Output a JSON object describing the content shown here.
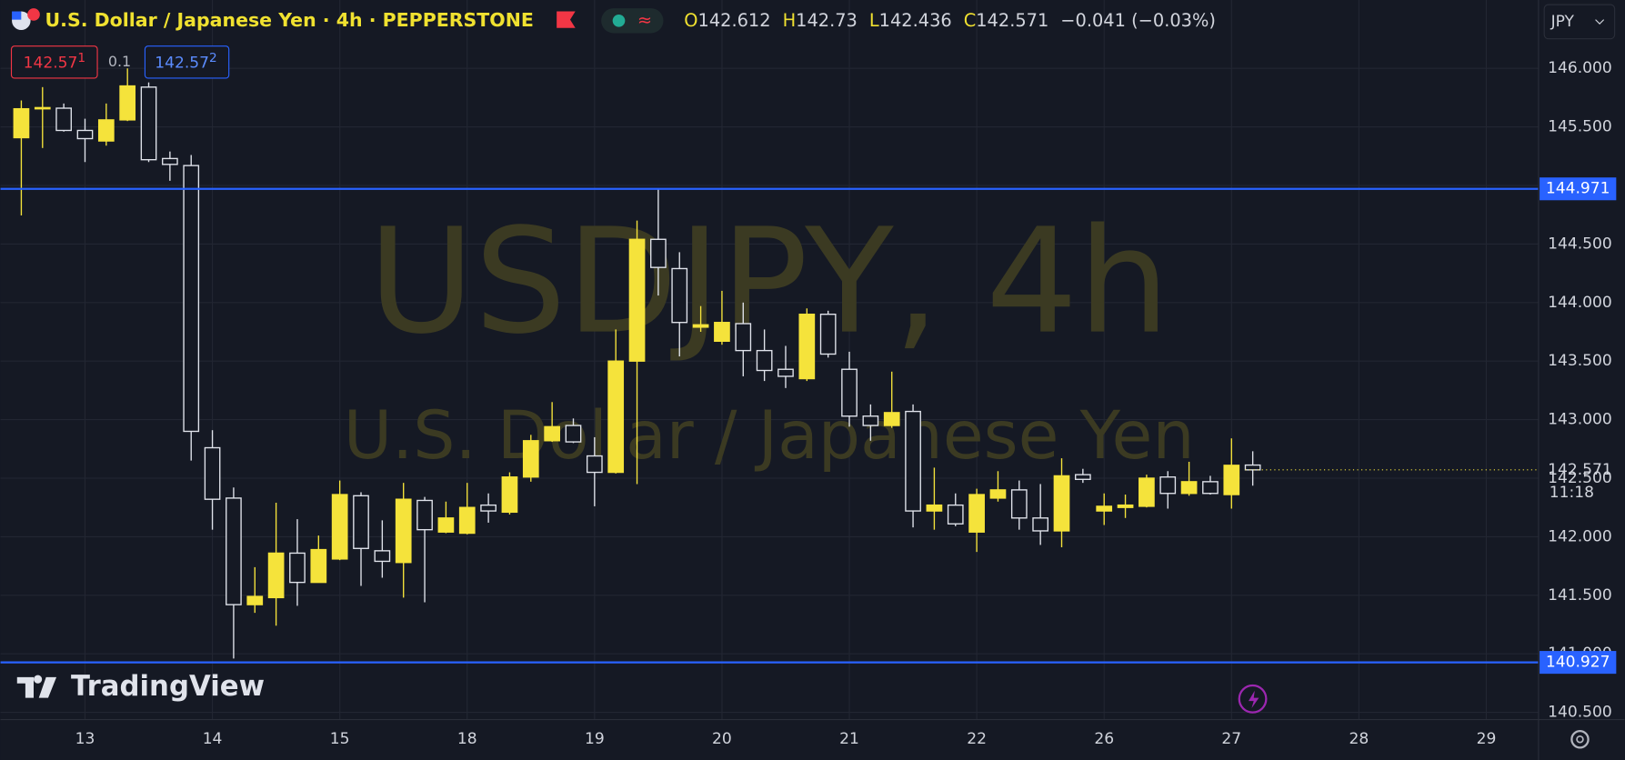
{
  "chart_data": {
    "type": "candlestick",
    "symbol_title": "U.S. Dollar / Japanese Yen · 4h · PEPPERSTONE",
    "legend_labels": {
      "open": "O",
      "high": "H",
      "low": "L",
      "close": "C"
    },
    "ohlc": {
      "open": 142.612,
      "high": 142.73,
      "low": 142.436,
      "close": 142.571,
      "change": "−0.041 (−0.03%)"
    },
    "trade": {
      "sell": "142.57",
      "sell_pip": "1",
      "spread": "0.1",
      "buy": "142.57",
      "buy_pip": "2"
    },
    "currency": "JPY",
    "brand": "TradingView",
    "watermark": {
      "symbol": "USDJPY, 4h",
      "description": "U.S. Dollar / Japanese Yen"
    },
    "countdown": "11:18",
    "up_color": "#f5e33b",
    "down_color": "#e0e3eb",
    "open": [
      145.408,
      145.66,
      145.66,
      145.47,
      145.38,
      145.56,
      145.84,
      145.23,
      145.17,
      142.76,
      142.33,
      141.42,
      141.48,
      141.86,
      141.61,
      141.81,
      142.35,
      141.88,
      141.78,
      142.31,
      142.04,
      142.03,
      142.27,
      142.21,
      142.51,
      142.82,
      142.95,
      142.69,
      142.55,
      143.5,
      144.54,
      144.29,
      143.79,
      143.67,
      143.82,
      143.59,
      143.43,
      143.35,
      143.9,
      143.43,
      143.03,
      142.95,
      143.07,
      142.22,
      142.27,
      142.04,
      142.33,
      142.4,
      142.16,
      142.05,
      142.53,
      142.22,
      142.25,
      142.26,
      142.51,
      142.37,
      142.47,
      142.36,
      142.612
    ],
    "high": [
      145.726,
      145.84,
      145.7,
      145.57,
      145.7,
      146.0,
      145.88,
      145.29,
      145.26,
      142.91,
      142.42,
      141.74,
      142.29,
      142.15,
      142.01,
      142.48,
      142.38,
      142.14,
      142.46,
      142.34,
      142.3,
      142.46,
      142.37,
      142.55,
      142.87,
      143.15,
      143.01,
      142.85,
      143.77,
      144.7,
      144.97,
      144.43,
      143.97,
      144.1,
      144.0,
      143.77,
      143.63,
      143.95,
      143.93,
      143.58,
      143.13,
      143.41,
      143.13,
      142.59,
      142.37,
      142.41,
      142.56,
      142.48,
      142.45,
      142.67,
      142.58,
      142.37,
      142.36,
      142.53,
      142.56,
      142.64,
      142.52,
      142.84,
      142.73
    ],
    "low": [
      144.744,
      145.32,
      145.46,
      145.2,
      145.34,
      145.55,
      145.2,
      145.04,
      142.65,
      142.06,
      140.96,
      141.35,
      141.24,
      141.41,
      141.61,
      141.8,
      141.58,
      141.65,
      141.48,
      141.44,
      142.03,
      142.02,
      142.12,
      142.19,
      142.47,
      142.81,
      142.8,
      142.26,
      142.54,
      142.45,
      144.06,
      143.54,
      143.75,
      143.64,
      143.37,
      143.33,
      143.27,
      143.33,
      143.53,
      142.94,
      142.82,
      142.93,
      142.08,
      142.06,
      142.09,
      141.87,
      142.3,
      142.06,
      141.93,
      141.91,
      142.46,
      142.1,
      142.16,
      142.25,
      142.24,
      142.35,
      142.36,
      142.24,
      142.436
    ],
    "close": [
      145.655,
      145.665,
      145.47,
      145.4,
      145.56,
      145.85,
      145.22,
      145.18,
      142.9,
      142.32,
      141.42,
      141.49,
      141.86,
      141.61,
      141.89,
      142.36,
      141.9,
      141.79,
      142.32,
      142.06,
      142.16,
      142.25,
      142.22,
      142.51,
      142.82,
      142.94,
      142.81,
      142.55,
      143.5,
      144.54,
      144.3,
      143.83,
      143.81,
      143.83,
      143.59,
      143.42,
      143.37,
      143.9,
      143.56,
      143.03,
      142.95,
      143.06,
      142.22,
      142.27,
      142.11,
      142.36,
      142.4,
      142.16,
      142.05,
      142.52,
      142.49,
      142.26,
      142.27,
      142.5,
      142.37,
      142.47,
      142.37,
      142.61,
      142.571
    ],
    "xlim": [
      -0.98,
      71.46
    ],
    "xticks": [
      {
        "value": 3,
        "label": "13"
      },
      {
        "value": 9,
        "label": "14"
      },
      {
        "value": 15,
        "label": "15"
      },
      {
        "value": 21,
        "label": "18"
      },
      {
        "value": 27,
        "label": "19"
      },
      {
        "value": 33,
        "label": "20"
      },
      {
        "value": 39,
        "label": "21"
      },
      {
        "value": 45,
        "label": "22"
      },
      {
        "value": 51,
        "label": "26"
      },
      {
        "value": 57,
        "label": "27"
      },
      {
        "value": 63,
        "label": "28"
      },
      {
        "value": 69,
        "label": "29"
      }
    ],
    "ylim": [
      140.438,
      146.584
    ],
    "yticks": [
      {
        "value": 140.5,
        "label": "140.500"
      },
      {
        "value": 141,
        "label": "141.000"
      },
      {
        "value": 141.5,
        "label": "141.500"
      },
      {
        "value": 142,
        "label": "142.000"
      },
      {
        "value": 142.5,
        "label": "142.500"
      },
      {
        "value": 143,
        "label": "143.000"
      },
      {
        "value": 143.5,
        "label": "143.500"
      },
      {
        "value": 144,
        "label": "144.000"
      },
      {
        "value": 144.5,
        "label": "144.500"
      },
      {
        "value": 145,
        "label": "145.000"
      },
      {
        "value": 145.5,
        "label": "145.500"
      },
      {
        "value": 146,
        "label": "146.000"
      }
    ],
    "grid": true,
    "hlines": [
      144.971,
      140.927
    ],
    "hline_color": "#2962ff"
  }
}
